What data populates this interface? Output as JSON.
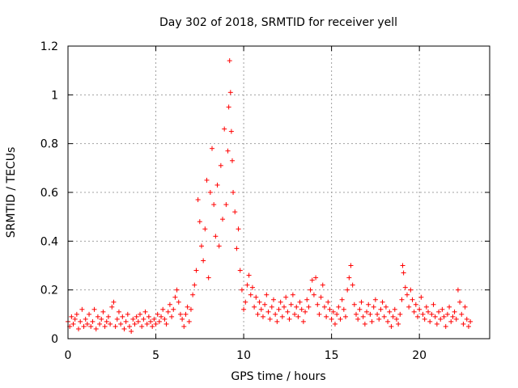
{
  "chart_data": {
    "type": "scatter",
    "title": "Day 302 of 2018, SRMTID for receiver yell",
    "xlabel": "GPS time / hours",
    "ylabel": "SRMTID / TECUs",
    "xlim": [
      0,
      24
    ],
    "ylim": [
      0,
      1.2
    ],
    "xticks": [
      0,
      5,
      10,
      15,
      20
    ],
    "yticks": [
      0,
      0.2,
      0.4,
      0.6,
      0.8,
      1,
      1.2
    ],
    "ytick_labels": [
      "0",
      "0.2",
      "0.4",
      "0.6",
      "0.8",
      "1",
      "1.2"
    ],
    "grid": true,
    "marker": "plus",
    "series_color": "#ff0000",
    "series": [
      {
        "name": "SRMTID",
        "description": "dense scatter cloud; representative points follow",
        "points": [
          [
            0.0,
            0.07
          ],
          [
            0.1,
            0.05
          ],
          [
            0.2,
            0.09
          ],
          [
            0.3,
            0.06
          ],
          [
            0.4,
            0.08
          ],
          [
            0.5,
            0.1
          ],
          [
            0.6,
            0.04
          ],
          [
            0.7,
            0.07
          ],
          [
            0.8,
            0.12
          ],
          [
            0.9,
            0.05
          ],
          [
            1.0,
            0.08
          ],
          [
            1.1,
            0.06
          ],
          [
            1.2,
            0.1
          ],
          [
            1.3,
            0.05
          ],
          [
            1.4,
            0.07
          ],
          [
            1.5,
            0.12
          ],
          [
            1.6,
            0.04
          ],
          [
            1.7,
            0.09
          ],
          [
            1.8,
            0.06
          ],
          [
            1.9,
            0.08
          ],
          [
            2.0,
            0.11
          ],
          [
            2.1,
            0.05
          ],
          [
            2.2,
            0.07
          ],
          [
            2.3,
            0.09
          ],
          [
            2.4,
            0.06
          ],
          [
            2.5,
            0.13
          ],
          [
            2.6,
            0.15
          ],
          [
            2.7,
            0.05
          ],
          [
            2.8,
            0.08
          ],
          [
            2.9,
            0.11
          ],
          [
            3.0,
            0.06
          ],
          [
            3.1,
            0.09
          ],
          [
            3.2,
            0.04
          ],
          [
            3.3,
            0.07
          ],
          [
            3.4,
            0.1
          ],
          [
            3.5,
            0.05
          ],
          [
            3.6,
            0.03
          ],
          [
            3.7,
            0.08
          ],
          [
            3.8,
            0.06
          ],
          [
            3.9,
            0.09
          ],
          [
            4.0,
            0.07
          ],
          [
            4.1,
            0.1
          ],
          [
            4.2,
            0.05
          ],
          [
            4.3,
            0.08
          ],
          [
            4.4,
            0.11
          ],
          [
            4.5,
            0.06
          ],
          [
            4.6,
            0.09
          ],
          [
            4.7,
            0.07
          ],
          [
            4.8,
            0.05
          ],
          [
            4.9,
            0.08
          ],
          [
            5.0,
            0.06
          ],
          [
            5.1,
            0.1
          ],
          [
            5.2,
            0.07
          ],
          [
            5.3,
            0.09
          ],
          [
            5.4,
            0.12
          ],
          [
            5.5,
            0.08
          ],
          [
            5.6,
            0.06
          ],
          [
            5.7,
            0.11
          ],
          [
            5.8,
            0.14
          ],
          [
            5.9,
            0.09
          ],
          [
            6.0,
            0.12
          ],
          [
            6.1,
            0.17
          ],
          [
            6.2,
            0.2
          ],
          [
            6.3,
            0.15
          ],
          [
            6.4,
            0.1
          ],
          [
            6.5,
            0.08
          ],
          [
            6.6,
            0.05
          ],
          [
            6.7,
            0.1
          ],
          [
            6.8,
            0.13
          ],
          [
            6.9,
            0.07
          ],
          [
            7.0,
            0.12
          ],
          [
            7.1,
            0.18
          ],
          [
            7.2,
            0.22
          ],
          [
            7.3,
            0.28
          ],
          [
            7.4,
            0.57
          ],
          [
            7.5,
            0.48
          ],
          [
            7.6,
            0.38
          ],
          [
            7.7,
            0.32
          ],
          [
            7.8,
            0.45
          ],
          [
            7.9,
            0.65
          ],
          [
            8.0,
            0.25
          ],
          [
            8.1,
            0.6
          ],
          [
            8.2,
            0.78
          ],
          [
            8.3,
            0.55
          ],
          [
            8.4,
            0.42
          ],
          [
            8.5,
            0.63
          ],
          [
            8.6,
            0.38
          ],
          [
            8.7,
            0.71
          ],
          [
            8.8,
            0.49
          ],
          [
            8.9,
            0.86
          ],
          [
            9.0,
            0.55
          ],
          [
            9.1,
            0.77
          ],
          [
            9.15,
            0.95
          ],
          [
            9.2,
            1.14
          ],
          [
            9.25,
            1.01
          ],
          [
            9.3,
            0.85
          ],
          [
            9.35,
            0.73
          ],
          [
            9.4,
            0.6
          ],
          [
            9.5,
            0.52
          ],
          [
            9.6,
            0.37
          ],
          [
            9.7,
            0.45
          ],
          [
            9.8,
            0.28
          ],
          [
            9.9,
            0.2
          ],
          [
            10.0,
            0.12
          ],
          [
            10.1,
            0.15
          ],
          [
            10.2,
            0.22
          ],
          [
            10.3,
            0.26
          ],
          [
            10.4,
            0.18
          ],
          [
            10.5,
            0.21
          ],
          [
            10.6,
            0.13
          ],
          [
            10.7,
            0.17
          ],
          [
            10.8,
            0.1
          ],
          [
            10.9,
            0.15
          ],
          [
            11.0,
            0.12
          ],
          [
            11.1,
            0.09
          ],
          [
            11.2,
            0.14
          ],
          [
            11.3,
            0.18
          ],
          [
            11.4,
            0.11
          ],
          [
            11.5,
            0.08
          ],
          [
            11.6,
            0.13
          ],
          [
            11.7,
            0.16
          ],
          [
            11.8,
            0.1
          ],
          [
            11.9,
            0.07
          ],
          [
            12.0,
            0.12
          ],
          [
            12.1,
            0.15
          ],
          [
            12.2,
            0.09
          ],
          [
            12.3,
            0.13
          ],
          [
            12.4,
            0.17
          ],
          [
            12.5,
            0.11
          ],
          [
            12.6,
            0.08
          ],
          [
            12.7,
            0.14
          ],
          [
            12.8,
            0.18
          ],
          [
            12.9,
            0.1
          ],
          [
            13.0,
            0.13
          ],
          [
            13.1,
            0.09
          ],
          [
            13.2,
            0.15
          ],
          [
            13.3,
            0.12
          ],
          [
            13.4,
            0.07
          ],
          [
            13.5,
            0.11
          ],
          [
            13.6,
            0.16
          ],
          [
            13.7,
            0.13
          ],
          [
            13.8,
            0.2
          ],
          [
            13.9,
            0.24
          ],
          [
            14.0,
            0.18
          ],
          [
            14.1,
            0.25
          ],
          [
            14.2,
            0.14
          ],
          [
            14.3,
            0.1
          ],
          [
            14.4,
            0.17
          ],
          [
            14.5,
            0.22
          ],
          [
            14.6,
            0.13
          ],
          [
            14.7,
            0.09
          ],
          [
            14.8,
            0.15
          ],
          [
            14.9,
            0.12
          ],
          [
            15.0,
            0.08
          ],
          [
            15.1,
            0.11
          ],
          [
            15.2,
            0.06
          ],
          [
            15.3,
            0.1
          ],
          [
            15.4,
            0.13
          ],
          [
            15.5,
            0.08
          ],
          [
            15.6,
            0.16
          ],
          [
            15.7,
            0.12
          ],
          [
            15.8,
            0.09
          ],
          [
            15.9,
            0.2
          ],
          [
            16.0,
            0.25
          ],
          [
            16.1,
            0.3
          ],
          [
            16.2,
            0.22
          ],
          [
            16.3,
            0.14
          ],
          [
            16.4,
            0.1
          ],
          [
            16.5,
            0.08
          ],
          [
            16.6,
            0.12
          ],
          [
            16.7,
            0.15
          ],
          [
            16.8,
            0.09
          ],
          [
            16.9,
            0.06
          ],
          [
            17.0,
            0.11
          ],
          [
            17.1,
            0.14
          ],
          [
            17.2,
            0.1
          ],
          [
            17.3,
            0.07
          ],
          [
            17.4,
            0.13
          ],
          [
            17.5,
            0.16
          ],
          [
            17.6,
            0.1
          ],
          [
            17.7,
            0.08
          ],
          [
            17.8,
            0.12
          ],
          [
            17.9,
            0.15
          ],
          [
            18.0,
            0.09
          ],
          [
            18.1,
            0.13
          ],
          [
            18.2,
            0.07
          ],
          [
            18.3,
            0.11
          ],
          [
            18.4,
            0.05
          ],
          [
            18.5,
            0.09
          ],
          [
            18.6,
            0.12
          ],
          [
            18.7,
            0.08
          ],
          [
            18.8,
            0.06
          ],
          [
            18.9,
            0.1
          ],
          [
            19.0,
            0.16
          ],
          [
            19.05,
            0.3
          ],
          [
            19.1,
            0.27
          ],
          [
            19.2,
            0.21
          ],
          [
            19.3,
            0.18
          ],
          [
            19.4,
            0.13
          ],
          [
            19.5,
            0.2
          ],
          [
            19.6,
            0.16
          ],
          [
            19.7,
            0.11
          ],
          [
            19.8,
            0.14
          ],
          [
            19.9,
            0.09
          ],
          [
            20.0,
            0.12
          ],
          [
            20.1,
            0.17
          ],
          [
            20.2,
            0.1
          ],
          [
            20.3,
            0.08
          ],
          [
            20.4,
            0.13
          ],
          [
            20.5,
            0.11
          ],
          [
            20.6,
            0.07
          ],
          [
            20.7,
            0.1
          ],
          [
            20.8,
            0.14
          ],
          [
            20.9,
            0.09
          ],
          [
            21.0,
            0.06
          ],
          [
            21.1,
            0.11
          ],
          [
            21.2,
            0.08
          ],
          [
            21.3,
            0.12
          ],
          [
            21.4,
            0.09
          ],
          [
            21.5,
            0.05
          ],
          [
            21.6,
            0.1
          ],
          [
            21.7,
            0.13
          ],
          [
            21.8,
            0.07
          ],
          [
            21.9,
            0.09
          ],
          [
            22.0,
            0.11
          ],
          [
            22.1,
            0.08
          ],
          [
            22.2,
            0.2
          ],
          [
            22.3,
            0.15
          ],
          [
            22.4,
            0.1
          ],
          [
            22.5,
            0.06
          ],
          [
            22.6,
            0.13
          ],
          [
            22.7,
            0.08
          ],
          [
            22.8,
            0.05
          ],
          [
            22.9,
            0.07
          ]
        ]
      }
    ]
  }
}
